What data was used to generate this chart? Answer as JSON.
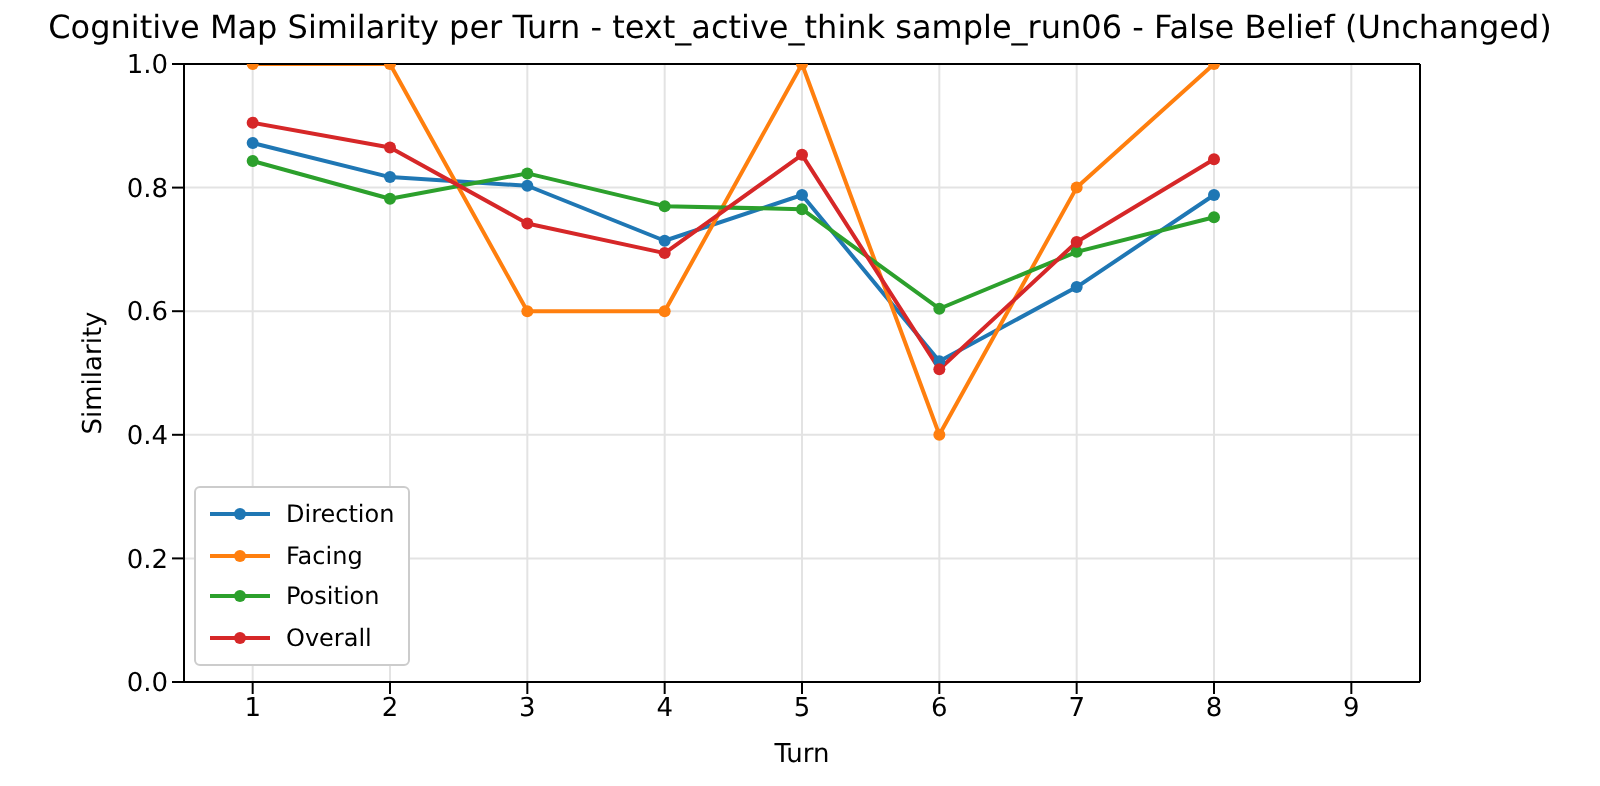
{
  "chart_data": {
    "type": "line",
    "title": "Cognitive Map Similarity per Turn - text_active_think sample_run06 - False Belief (Unchanged)",
    "xlabel": "Turn",
    "ylabel": "Similarity",
    "x": [
      1,
      2,
      3,
      4,
      5,
      6,
      7,
      8
    ],
    "series": [
      {
        "name": "Direction",
        "color": "#1f77b4",
        "values": [
          0.872,
          0.817,
          0.803,
          0.714,
          0.788,
          0.519,
          0.639,
          0.788
        ]
      },
      {
        "name": "Facing",
        "color": "#ff7f0e",
        "values": [
          1.0,
          1.0,
          0.6,
          0.6,
          1.0,
          0.4,
          0.8,
          1.0
        ]
      },
      {
        "name": "Position",
        "color": "#2ca02c",
        "values": [
          0.843,
          0.782,
          0.823,
          0.77,
          0.765,
          0.604,
          0.696,
          0.752
        ]
      },
      {
        "name": "Overall",
        "color": "#d62728",
        "values": [
          0.905,
          0.865,
          0.742,
          0.694,
          0.853,
          0.506,
          0.712,
          0.846
        ]
      }
    ],
    "xlim": [
      0.5,
      9.5
    ],
    "xticks": [
      1,
      2,
      3,
      4,
      5,
      6,
      7,
      8,
      9
    ],
    "ylim": [
      0,
      1
    ],
    "yticks": [
      {
        "value": 0,
        "label": "0.0"
      },
      0.2,
      0.4,
      0.6,
      0.8,
      {
        "value": 1,
        "label": "1.0"
      }
    ],
    "grid": true,
    "legend": "bottom left",
    "marker": "circle",
    "line_style": "solid"
  }
}
